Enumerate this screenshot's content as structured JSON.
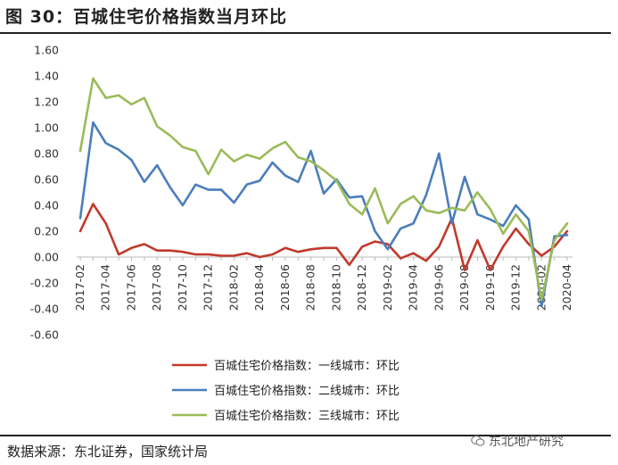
{
  "header": {
    "title": "图 30：百城住宅价格指数当月环比"
  },
  "footer": {
    "source": "数据来源：东北证券，国家统计局",
    "watermark": "东北地产研究"
  },
  "chart_data": {
    "type": "line",
    "title": "",
    "xlabel": "",
    "ylabel": "",
    "ylim": [
      -0.6,
      1.6
    ],
    "yticks": [
      "1.60",
      "1.40",
      "1.20",
      "1.00",
      "0.80",
      "0.60",
      "0.40",
      "0.20",
      "0.00",
      "-0.20",
      "-0.40",
      "-0.60"
    ],
    "xtick_labels": [
      "2017-02",
      "2017-04",
      "2017-06",
      "2017-08",
      "2017-10",
      "2017-12",
      "2018-02",
      "2018-04",
      "2018-06",
      "2018-08",
      "2018-10",
      "2018-12",
      "2019-02",
      "2019-04",
      "2019-06",
      "2019-08",
      "2019-10",
      "2019-12",
      "2020-02",
      "2020-04"
    ],
    "grid": false,
    "legend_position": "bottom",
    "categories": [
      "2017-02",
      "2017-03",
      "2017-04",
      "2017-05",
      "2017-06",
      "2017-07",
      "2017-08",
      "2017-09",
      "2017-10",
      "2017-11",
      "2017-12",
      "2018-01",
      "2018-02",
      "2018-03",
      "2018-04",
      "2018-05",
      "2018-06",
      "2018-07",
      "2018-08",
      "2018-09",
      "2018-10",
      "2018-11",
      "2018-12",
      "2019-01",
      "2019-02",
      "2019-03",
      "2019-04",
      "2019-05",
      "2019-06",
      "2019-07",
      "2019-08",
      "2019-09",
      "2019-10",
      "2019-11",
      "2019-12",
      "2020-01",
      "2020-02",
      "2020-03",
      "2020-04"
    ],
    "series": [
      {
        "name": "百城住宅价格指数：一线城市：环比",
        "color": "#c0392b",
        "values": [
          0.2,
          0.41,
          0.26,
          0.02,
          0.07,
          0.1,
          0.05,
          0.05,
          0.04,
          0.02,
          0.02,
          0.01,
          0.01,
          0.03,
          0.0,
          0.02,
          0.07,
          0.04,
          0.06,
          0.07,
          0.07,
          -0.06,
          0.08,
          0.12,
          0.1,
          -0.01,
          0.03,
          -0.03,
          0.08,
          0.3,
          -0.1,
          0.13,
          -0.1,
          0.08,
          0.22,
          0.1,
          0.01,
          0.08,
          0.2
        ]
      },
      {
        "name": "百城住宅价格指数：二线城市：环比",
        "color": "#4a7ebb",
        "values": [
          0.3,
          1.04,
          0.88,
          0.83,
          0.75,
          0.58,
          0.71,
          0.54,
          0.4,
          0.56,
          0.52,
          0.52,
          0.42,
          0.56,
          0.59,
          0.73,
          0.63,
          0.58,
          0.82,
          0.49,
          0.6,
          0.46,
          0.47,
          0.2,
          0.06,
          0.22,
          0.26,
          0.48,
          0.8,
          0.26,
          0.62,
          0.33,
          0.29,
          0.24,
          0.4,
          0.29,
          -0.38,
          0.16,
          0.17
        ]
      },
      {
        "name": "百城住宅价格指数：三线城市：环比",
        "color": "#9bbb59",
        "values": [
          0.82,
          1.38,
          1.23,
          1.25,
          1.18,
          1.23,
          1.01,
          0.94,
          0.85,
          0.82,
          0.64,
          0.83,
          0.74,
          0.79,
          0.76,
          0.84,
          0.89,
          0.77,
          0.74,
          0.67,
          0.59,
          0.41,
          0.33,
          0.53,
          0.26,
          0.41,
          0.47,
          0.36,
          0.34,
          0.38,
          0.36,
          0.5,
          0.37,
          0.18,
          0.33,
          0.2,
          -0.33,
          0.13,
          0.26
        ]
      }
    ]
  }
}
